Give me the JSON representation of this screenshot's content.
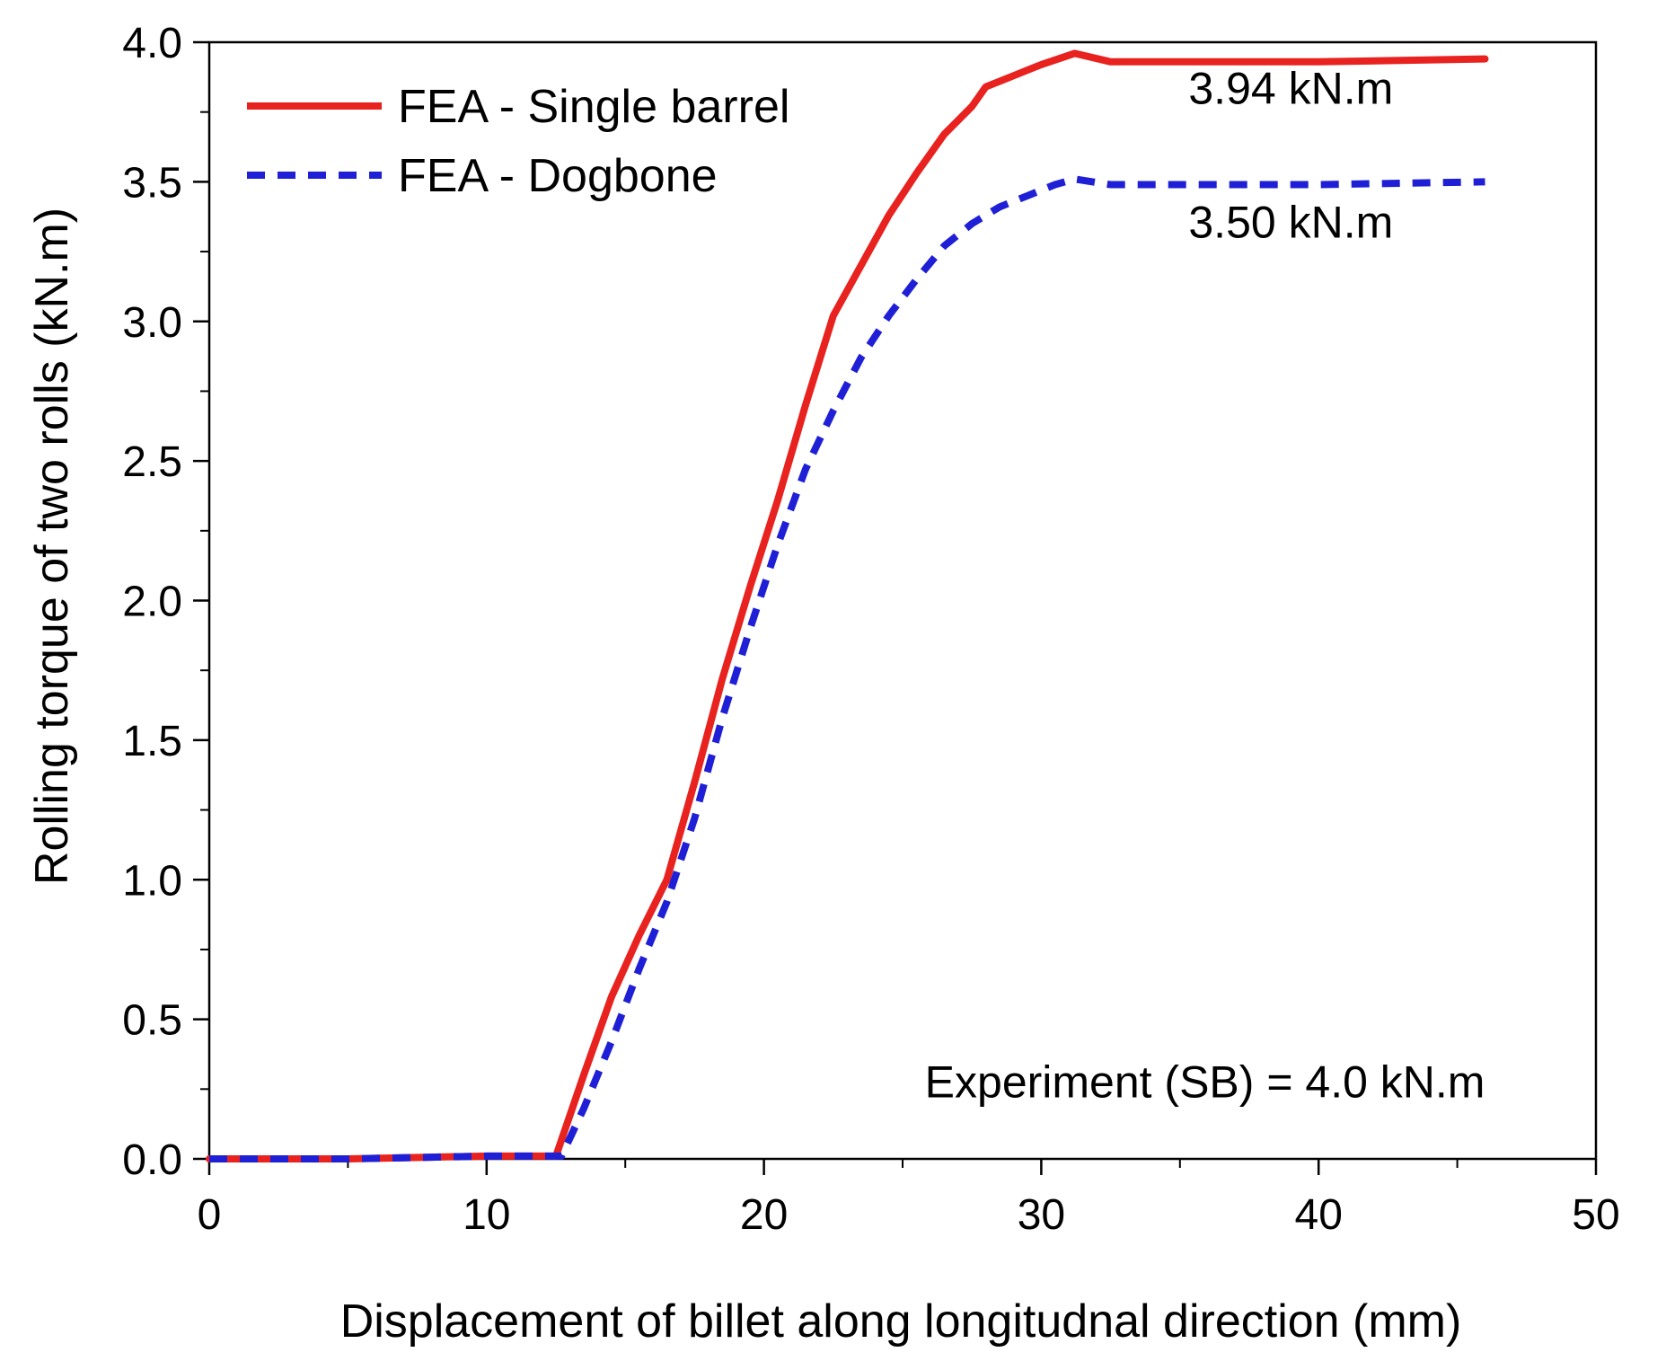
{
  "chart_data": {
    "type": "line",
    "title": "",
    "xlabel": "Displacement of billet along longitudnal direction (mm)",
    "ylabel": "Rolling torque of two rolls (kN.m)",
    "xlim": [
      0,
      50
    ],
    "ylim": [
      0,
      4.0
    ],
    "xticks": [
      0,
      10,
      20,
      30,
      40,
      50
    ],
    "xtick_labels": [
      "0",
      "10",
      "20",
      "30",
      "40",
      "50"
    ],
    "yticks": [
      0,
      0.5,
      1.0,
      1.5,
      2.0,
      2.5,
      3.0,
      3.5,
      4.0
    ],
    "ytick_labels": [
      "0.0",
      "0.5",
      "1.0",
      "1.5",
      "2.0",
      "2.5",
      "3.0",
      "3.5",
      "4.0"
    ],
    "grid": false,
    "legend_position": "top-left",
    "series": [
      {
        "name": "FEA - Single barrel",
        "color": "#e8221f",
        "style": "solid",
        "x": [
          0,
          5,
          10,
          12.5,
          13.5,
          14.5,
          15.5,
          16.5,
          17.5,
          18.5,
          19.5,
          20.5,
          21.5,
          22.5,
          23.5,
          24.5,
          25.5,
          26.5,
          27.5,
          28,
          29,
          30,
          31.2,
          32.5,
          35,
          40,
          46
        ],
        "y": [
          0,
          0,
          0.01,
          0.01,
          0.3,
          0.58,
          0.8,
          1.0,
          1.35,
          1.72,
          2.05,
          2.36,
          2.7,
          3.02,
          3.2,
          3.38,
          3.53,
          3.67,
          3.77,
          3.84,
          3.88,
          3.92,
          3.96,
          3.93,
          3.93,
          3.93,
          3.94
        ]
      },
      {
        "name": "FEA - Dogbone",
        "color": "#1f1fd6",
        "style": "dashed",
        "x": [
          0,
          5,
          10,
          12.7,
          13.5,
          14.5,
          15.5,
          16.5,
          17.5,
          18.5,
          19.5,
          20.5,
          21.5,
          22.5,
          23.5,
          24.5,
          25.5,
          26.5,
          27.5,
          28.5,
          29.5,
          30.5,
          31.2,
          32.5,
          35,
          40,
          46
        ],
        "y": [
          0,
          0,
          0.01,
          0.01,
          0.18,
          0.42,
          0.68,
          0.92,
          1.22,
          1.58,
          1.9,
          2.2,
          2.47,
          2.68,
          2.87,
          3.02,
          3.15,
          3.27,
          3.35,
          3.41,
          3.45,
          3.49,
          3.51,
          3.49,
          3.49,
          3.49,
          3.5
        ]
      }
    ],
    "annotations": [
      {
        "text": "3.94 kN.m",
        "x": 39,
        "y": 3.78
      },
      {
        "text": "3.50 kN.m",
        "x": 39,
        "y": 3.3
      },
      {
        "text": "Experiment (SB) = 4.0 kN.m",
        "x": 46,
        "y": 0.22
      }
    ]
  }
}
